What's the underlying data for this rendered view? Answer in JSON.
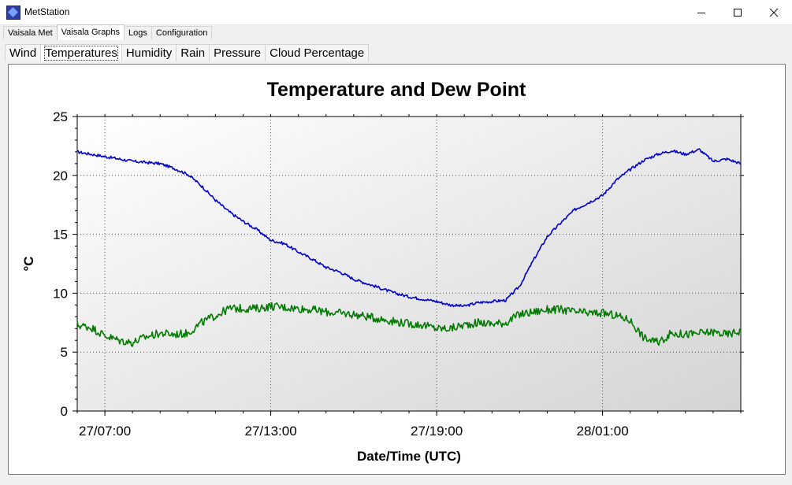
{
  "window": {
    "title": "MetStation",
    "minimize_label": "—",
    "maximize_label": "☐",
    "close_label": "✕"
  },
  "main_tabs": [
    {
      "label": "Vaisala Met",
      "active": false
    },
    {
      "label": "Vaisala Graphs",
      "active": true
    },
    {
      "label": "Logs",
      "active": false
    },
    {
      "label": "Configuration",
      "active": false
    }
  ],
  "graph_tabs": [
    {
      "label": "Wind",
      "active": false
    },
    {
      "label": "Temperatures",
      "active": true
    },
    {
      "label": "Humidity",
      "active": false
    },
    {
      "label": "Rain",
      "active": false
    },
    {
      "label": "Pressure",
      "active": false
    },
    {
      "label": "Cloud Percentage",
      "active": false
    }
  ],
  "colors": {
    "series_temperature": "#0000cc",
    "series_dewpoint": "#007a00",
    "plot_bg_top": "#ffffff",
    "plot_bg_bottom": "#d4d4d4"
  },
  "chart_data": {
    "type": "line",
    "title": "Temperature and Dew Point",
    "xlabel": "Date/Time (UTC)",
    "ylabel": "°C",
    "ylim": [
      0,
      25
    ],
    "yticks": [
      0,
      5,
      10,
      15,
      20,
      25
    ],
    "x_hours_range": [
      6,
      30
    ],
    "xtick_labels": [
      {
        "label": "27/07:00",
        "hour": 7
      },
      {
        "label": "27/13:00",
        "hour": 13
      },
      {
        "label": "27/19:00",
        "hour": 19
      },
      {
        "label": "28/01:00",
        "hour": 25
      }
    ],
    "grid": true,
    "legend": "none",
    "series": [
      {
        "x": [
          6.0,
          6.5,
          7.0,
          7.5,
          8.0,
          8.5,
          9.0,
          9.5,
          10.0,
          10.5,
          11.0,
          11.5,
          12.0,
          12.5,
          13.0,
          13.5,
          14.0,
          14.5,
          15.0,
          15.5,
          16.0,
          16.5,
          17.0,
          17.5,
          18.0,
          18.5,
          19.0,
          19.5,
          20.0,
          20.5,
          21.0,
          21.5,
          22.0,
          22.5,
          23.0,
          23.5,
          24.0,
          24.5,
          25.0,
          25.5,
          26.0,
          26.5,
          27.0,
          27.5,
          28.0,
          28.5,
          29.0,
          29.5,
          30.0
        ],
        "values": [
          22.0,
          21.8,
          21.6,
          21.4,
          21.2,
          21.1,
          21.0,
          20.6,
          20.1,
          19.1,
          17.9,
          16.9,
          16.1,
          15.4,
          14.5,
          14.2,
          13.5,
          12.9,
          12.2,
          11.8,
          11.2,
          10.8,
          10.4,
          10.0,
          9.7,
          9.5,
          9.3,
          9.0,
          8.9,
          9.2,
          9.3,
          9.4,
          10.6,
          12.8,
          14.8,
          16.0,
          17.1,
          17.7,
          18.3,
          19.6,
          20.5,
          21.3,
          21.8,
          22.1,
          21.8,
          22.2,
          21.2,
          21.4,
          21.0
        ]
      },
      {
        "x": [
          6.0,
          6.5,
          7.0,
          7.5,
          8.0,
          8.5,
          9.0,
          9.5,
          10.0,
          10.5,
          11.0,
          11.5,
          12.0,
          12.5,
          13.0,
          13.5,
          14.0,
          14.5,
          15.0,
          15.5,
          16.0,
          16.5,
          17.0,
          17.5,
          18.0,
          18.5,
          19.0,
          19.5,
          20.0,
          20.5,
          21.0,
          21.5,
          22.0,
          22.5,
          23.0,
          23.5,
          24.0,
          24.5,
          25.0,
          25.5,
          26.0,
          26.5,
          27.0,
          27.5,
          28.0,
          28.5,
          29.0,
          29.5,
          30.0
        ],
        "values": [
          7.3,
          7.1,
          6.4,
          6.0,
          5.8,
          6.3,
          6.6,
          6.5,
          6.6,
          7.5,
          8.1,
          8.7,
          8.7,
          8.7,
          8.9,
          8.8,
          8.7,
          8.6,
          8.4,
          8.3,
          8.2,
          8.0,
          7.8,
          7.6,
          7.4,
          7.3,
          7.0,
          7.0,
          7.3,
          7.5,
          7.4,
          7.5,
          8.2,
          8.4,
          8.6,
          8.6,
          8.4,
          8.3,
          8.3,
          8.1,
          7.7,
          6.2,
          5.8,
          6.6,
          6.5,
          6.6,
          6.7,
          6.5,
          6.8
        ]
      }
    ]
  }
}
